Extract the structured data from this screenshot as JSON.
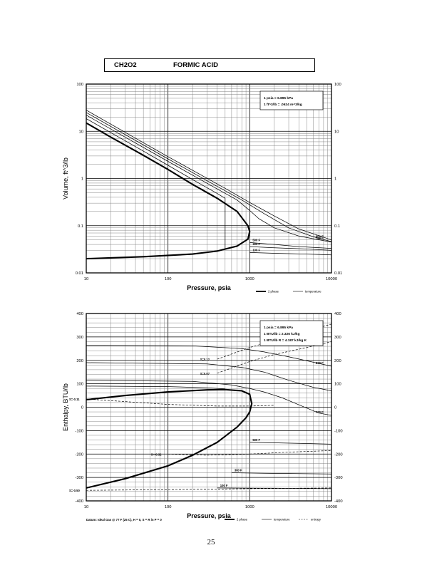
{
  "header": {
    "formula": "CH2O2",
    "name": "FORMIC ACID"
  },
  "page_number": "25",
  "colors": {
    "ink": "#000000",
    "grid": "#777777"
  },
  "chart_data": [
    {
      "type": "line",
      "xscale": "log",
      "yscale": "log",
      "xlim": [
        10,
        10000
      ],
      "ylim": [
        0.01,
        100
      ],
      "xlabel": "Pressure,  psia",
      "ylabel": "Volume, ft^3/lb",
      "xticks": [
        "10",
        "100",
        "1000",
        "10000"
      ],
      "yticks": [
        "0.01",
        "0.1",
        "1",
        "10",
        "100"
      ],
      "grid": true,
      "legend": {
        "placement": "bottom-right",
        "entries": [
          "2 phase",
          "temperature"
        ]
      },
      "notes": [
        "1 psia = 6.895 kPa",
        "1 ft^3/lb = .0624 m^3/kg"
      ],
      "series": [
        {
          "kind": "two-phase",
          "style": "thick",
          "points": [
            [
              10,
              15
            ],
            [
              20,
              7.5
            ],
            [
              50,
              3.1
            ],
            [
              100,
              1.55
            ],
            [
              200,
              0.75
            ],
            [
              400,
              0.38
            ],
            [
              700,
              0.2
            ],
            [
              950,
              0.1
            ],
            [
              1000,
              0.075
            ],
            [
              950,
              0.052
            ],
            [
              700,
              0.037
            ],
            [
              400,
              0.029
            ],
            [
              200,
              0.025
            ],
            [
              50,
              0.022
            ],
            [
              10,
              0.02
            ]
          ]
        },
        {
          "kind": "temperature",
          "label": "",
          "points": [
            [
              10,
              18.5
            ],
            [
              50,
              3.8
            ],
            [
              100,
              1.9
            ],
            [
              200,
              0.95
            ],
            [
              400,
              0.48
            ],
            [
              500,
              0.38
            ],
            [
              500,
              0.032
            ]
          ]
        },
        {
          "kind": "temperature",
          "label": "",
          "points": [
            [
              10,
              22
            ],
            [
              100,
              2.3
            ],
            [
              400,
              0.6
            ],
            [
              700,
              0.35
            ],
            [
              1000,
              0.21
            ],
            [
              1300,
              0.14
            ],
            [
              2000,
              0.09
            ],
            [
              4000,
              0.06
            ],
            [
              10000,
              0.045
            ]
          ]
        },
        {
          "kind": "temperature",
          "label": "700 F",
          "points": [
            [
              10,
              25
            ],
            [
              100,
              2.6
            ],
            [
              400,
              0.68
            ],
            [
              800,
              0.35
            ],
            [
              1500,
              0.18
            ],
            [
              3000,
              0.09
            ],
            [
              6000,
              0.058
            ],
            [
              10000,
              0.046
            ]
          ]
        },
        {
          "kind": "temperature",
          "label": "800 F",
          "points": [
            [
              10,
              28
            ],
            [
              100,
              2.9
            ],
            [
              500,
              0.62
            ],
            [
              1000,
              0.31
            ],
            [
              2000,
              0.16
            ],
            [
              4000,
              0.085
            ],
            [
              10000,
              0.05
            ]
          ]
        },
        {
          "kind": "temperature",
          "label": "500 F",
          "points": [
            [
              1000,
              0.044
            ],
            [
              2000,
              0.04
            ],
            [
              4000,
              0.036
            ],
            [
              10000,
              0.033
            ]
          ]
        },
        {
          "kind": "temperature",
          "label": "300 F",
          "points": [
            [
              1000,
              0.036
            ],
            [
              2000,
              0.034
            ],
            [
              5000,
              0.032
            ],
            [
              10000,
              0.03
            ]
          ]
        },
        {
          "kind": "temperature",
          "label": "100 F",
          "points": [
            [
              1000,
              0.027
            ],
            [
              2000,
              0.026
            ],
            [
              5000,
              0.025
            ],
            [
              10000,
              0.024
            ]
          ]
        }
      ]
    },
    {
      "type": "line",
      "xscale": "log",
      "xlim": [
        10,
        10000
      ],
      "ylim": [
        -400,
        400
      ],
      "xlabel": "Pressure,  psia",
      "ylabel": "Enthalpy, BTU/lb",
      "xticks": [
        "10",
        "100",
        "1000",
        "10000"
      ],
      "yticks": [
        "-400",
        "-300",
        "-200",
        "-100",
        "0",
        "100",
        "200",
        "300",
        "400"
      ],
      "grid": true,
      "legend": {
        "placement": "bottom-right",
        "entries": [
          "2 phase",
          "temperature",
          "entropy"
        ]
      },
      "notes": [
        "1 psia = 6.895 kPa",
        "1 BTU/lb = 2.326 kJ/kg",
        "1 BTU/lb R = 4.187 kJ/kg K"
      ],
      "datum": "Datum: Ideal Gas @ 77 F (25 C), H = 0, S = R ln P = 0",
      "series": [
        {
          "kind": "two-phase",
          "style": "thick",
          "points": [
            [
              10,
              32
            ],
            [
              30,
              50
            ],
            [
              100,
              65
            ],
            [
              300,
              74
            ],
            [
              500,
              75
            ],
            [
              800,
              70
            ],
            [
              1000,
              55
            ],
            [
              1060,
              15
            ],
            [
              1000,
              -20
            ],
            [
              900,
              -45
            ],
            [
              700,
              -85
            ],
            [
              400,
              -150
            ],
            [
              200,
              -205
            ],
            [
              100,
              -250
            ],
            [
              30,
              -305
            ],
            [
              10,
              -345
            ]
          ]
        },
        {
          "kind": "temperature",
          "label": "",
          "points": [
            [
              10,
              90
            ],
            [
              100,
              88
            ],
            [
              300,
              83
            ],
            [
              500,
              78
            ]
          ]
        },
        {
          "kind": "temperature",
          "label": "800 F",
          "points": [
            [
              10,
              265
            ],
            [
              200,
              262
            ],
            [
              800,
              250
            ],
            [
              1500,
              236
            ],
            [
              3000,
              215
            ],
            [
              6000,
              192
            ],
            [
              10000,
              175
            ]
          ]
        },
        {
          "kind": "temperature",
          "label": "",
          "points": [
            [
              10,
              190
            ],
            [
              300,
              185
            ],
            [
              800,
              170
            ],
            [
              1500,
              150
            ],
            [
              3000,
              115
            ],
            [
              6000,
              85
            ],
            [
              10000,
              70
            ]
          ]
        },
        {
          "kind": "temperature",
          "label": "700 F",
          "points": [
            [
              10,
              115
            ],
            [
              200,
              110
            ],
            [
              600,
              95
            ],
            [
              1000,
              80
            ],
            [
              1500,
              65
            ],
            [
              2500,
              40
            ],
            [
              4000,
              10
            ],
            [
              7000,
              -25
            ],
            [
              10000,
              -35
            ]
          ]
        },
        {
          "kind": "temperature",
          "label": "500 F",
          "points": [
            [
              1000,
              -150
            ],
            [
              2000,
              -152
            ],
            [
              5000,
              -155
            ],
            [
              10000,
              -158
            ]
          ]
        },
        {
          "kind": "temperature",
          "label": "300 F",
          "points": [
            [
              600,
              -280
            ],
            [
              1500,
              -282
            ],
            [
              5000,
              -284
            ],
            [
              10000,
              -285
            ]
          ]
        },
        {
          "kind": "temperature",
          "label": "100 F",
          "points": [
            [
              400,
              -345
            ],
            [
              1500,
              -346
            ],
            [
              5000,
              -347
            ],
            [
              10000,
              -348
            ]
          ]
        },
        {
          "kind": "entropy",
          "label": "S=0.12",
          "points": [
            [
              400,
              205
            ],
            [
              1000,
              255
            ],
            [
              2000,
              285
            ],
            [
              4000,
              315
            ],
            [
              10000,
              355
            ]
          ]
        },
        {
          "kind": "entropy",
          "label": "S=0.07",
          "points": [
            [
              400,
              145
            ],
            [
              1000,
              195
            ],
            [
              2000,
              225
            ],
            [
              5000,
              255
            ],
            [
              10000,
              280
            ]
          ]
        },
        {
          "kind": "entropy",
          "label": "S=-0.11",
          "points": [
            [
              10,
              35
            ],
            [
              100,
              12
            ],
            [
              400,
              5
            ],
            [
              1000,
              5
            ],
            [
              2000,
              8
            ]
          ]
        },
        {
          "kind": "entropy",
          "label": "S=-0.32",
          "points": [
            [
              100,
              -200
            ],
            [
              300,
              -205
            ],
            [
              1000,
              -200
            ],
            [
              3000,
              -192
            ],
            [
              10000,
              -185
            ]
          ]
        },
        {
          "kind": "entropy",
          "label": "S=-0.50",
          "points": [
            [
              10,
              -355
            ],
            [
              100,
              -352
            ],
            [
              1000,
              -348
            ],
            [
              10000,
              -345
            ]
          ]
        }
      ]
    }
  ]
}
